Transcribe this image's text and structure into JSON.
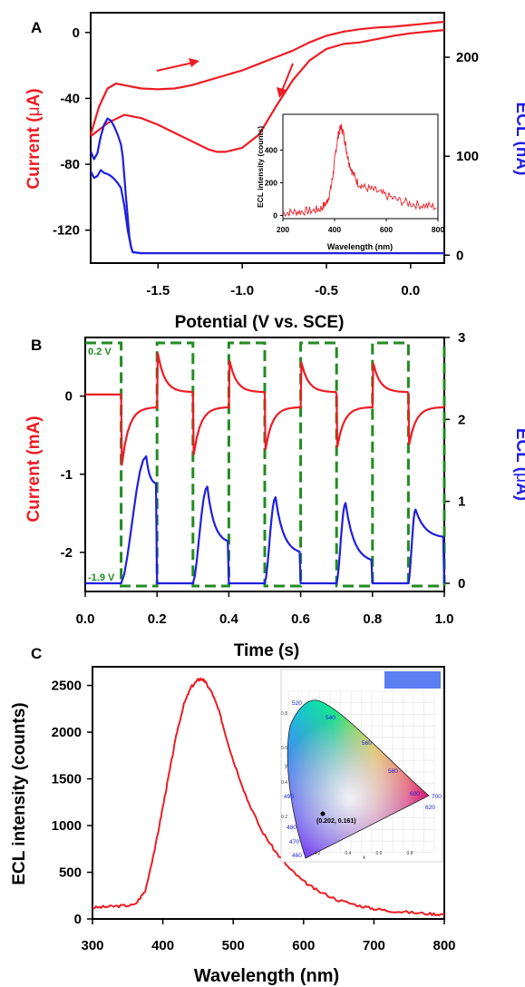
{
  "chart_data": [
    {
      "panel_label": "A",
      "type": "line",
      "xlabel": "Potential (V vs. SCE)",
      "ylabel_left_parts": [
        "Current (",
        "μ",
        "A)"
      ],
      "ylabel_right": "ECL (nA)",
      "xlim": [
        -1.9,
        0.2
      ],
      "ylim_left": [
        -140,
        12
      ],
      "ylim_right": [
        -8,
        245
      ],
      "x_ticks": [
        "-1.5",
        "-1.0",
        "-0.5",
        "0.0"
      ],
      "y_ticks_left": [
        "0",
        "-40",
        "-80",
        "-120"
      ],
      "y_ticks_right": [
        "0",
        "100",
        "200"
      ],
      "colors": {
        "current": "#ee1c24",
        "ecl": "#1f1fe0"
      },
      "series": [
        {
          "axis": "left",
          "color": "#ee1c24",
          "x": [
            -1.9,
            -1.85,
            -1.8,
            -1.75,
            -1.7,
            -1.6,
            -1.5,
            -1.4,
            -1.3,
            -1.2,
            -1.1,
            -1.0,
            -0.9,
            -0.8,
            -0.7,
            -0.6,
            -0.5,
            -0.4,
            -0.3,
            -0.2,
            -0.1,
            0.0,
            0.1,
            0.2
          ],
          "values": [
            -62,
            -45,
            -34,
            -31,
            -32,
            -34,
            -34.5,
            -34,
            -32,
            -29,
            -26,
            -23,
            -19,
            -15,
            -11,
            -6,
            -2,
            0.5,
            2,
            3,
            3.5,
            4.5,
            5.5,
            6.5
          ]
        },
        {
          "axis": "left",
          "color": "#ee1c24",
          "x": [
            0.2,
            0.1,
            0.0,
            -0.1,
            -0.2,
            -0.3,
            -0.4,
            -0.5,
            -0.6,
            -0.7,
            -0.8,
            -0.9,
            -1.0,
            -1.1,
            -1.15,
            -1.2,
            -1.3,
            -1.4,
            -1.5,
            -1.6,
            -1.7,
            -1.8,
            -1.9
          ],
          "values": [
            1.5,
            0.5,
            -0.5,
            -2,
            -4,
            -6,
            -7,
            -10,
            -17,
            -29,
            -45,
            -62,
            -70,
            -72.5,
            -72.5,
            -71,
            -66,
            -61,
            -56,
            -52,
            -50,
            -55,
            -63
          ]
        },
        {
          "axis": "right",
          "color": "#1f1fe0",
          "x": [
            -1.9,
            -1.88,
            -1.86,
            -1.84,
            -1.82,
            -1.8,
            -1.78,
            -1.76,
            -1.74,
            -1.72,
            -1.71,
            -1.7,
            -1.69,
            -1.68,
            -1.67,
            -1.66,
            -1.65,
            -1.6,
            -1.5,
            -1.0,
            -0.5,
            0.0,
            0.2
          ],
          "values": [
            105,
            97,
            103,
            120,
            132,
            138,
            136,
            130,
            122,
            112,
            100,
            80,
            58,
            38,
            18,
            8,
            3,
            2,
            2,
            2,
            2,
            2,
            2
          ]
        },
        {
          "axis": "right",
          "color": "#1f1fe0",
          "x": [
            -1.9,
            -1.88,
            -1.86,
            -1.84,
            -1.82,
            -1.8,
            -1.78,
            -1.76,
            -1.74,
            -1.72,
            -1.7,
            -1.68,
            -1.66,
            -1.65,
            -1.6
          ],
          "values": [
            85,
            78,
            80,
            86,
            83,
            82,
            80,
            77,
            73,
            68,
            50,
            25,
            8,
            3,
            2
          ]
        }
      ],
      "arrows": [
        "right",
        "down-left"
      ],
      "inset": {
        "type": "line",
        "xlabel": "Wavelength (nm)",
        "ylabel": "ECL intensity (counts)",
        "xlim": [
          200,
          800
        ],
        "ylim": [
          -20,
          620
        ],
        "x_ticks": [
          "200",
          "400",
          "600",
          "800"
        ],
        "y_ticks": [
          "0",
          "200",
          "400"
        ],
        "color": "#ee1c24",
        "x": [
          200,
          240,
          280,
          320,
          350,
          370,
          385,
          395,
          405,
          415,
          425,
          435,
          445,
          455,
          470,
          490,
          520,
          560,
          600,
          650,
          700,
          750,
          800
        ],
        "values": [
          15,
          20,
          25,
          30,
          45,
          80,
          160,
          260,
          400,
          500,
          545,
          500,
          410,
          330,
          260,
          200,
          170,
          150,
          120,
          90,
          70,
          60,
          50
        ]
      }
    },
    {
      "panel_label": "B",
      "type": "line",
      "xlabel": "Time (s)",
      "ylabel_left": "Current (mA)",
      "ylabel_right_parts": [
        "ECL (",
        "μ",
        "A)"
      ],
      "xlim": [
        0,
        1.0
      ],
      "ylim_left": [
        -2.5,
        0.75
      ],
      "ylim_right": [
        -0.1,
        3.0
      ],
      "x_ticks": [
        "0.0",
        "0.2",
        "0.4",
        "0.6",
        "0.8",
        "1.0"
      ],
      "y_ticks_left": [
        "0",
        "-1",
        "-2"
      ],
      "y_ticks_right": [
        "0",
        "1",
        "2",
        "3"
      ],
      "annotations": {
        "high": "0.2 V",
        "low": "-1.9 V"
      },
      "colors": {
        "current": "#ee1c24",
        "ecl": "#1f1fe0",
        "potential": "#228b22"
      },
      "step_times": [
        0.1,
        0.2,
        0.3,
        0.4,
        0.5,
        0.6,
        0.7,
        0.8,
        0.9,
        1.0
      ],
      "current_steps": [
        {
          "t": 0.1,
          "peak": -0.88
        },
        {
          "t": 0.2,
          "peak": 0.55
        },
        {
          "t": 0.3,
          "peak": -0.75
        },
        {
          "t": 0.4,
          "peak": 0.45
        },
        {
          "t": 0.5,
          "peak": -0.68
        },
        {
          "t": 0.6,
          "peak": 0.43
        },
        {
          "t": 0.7,
          "peak": -0.65
        },
        {
          "t": 0.8,
          "peak": 0.42
        },
        {
          "t": 0.9,
          "peak": -0.62
        }
      ],
      "ecl_pulses": [
        {
          "start": 0.1,
          "peak_t": 0.17,
          "peak": 1.55,
          "end_level": 1.2
        },
        {
          "start": 0.3,
          "peak_t": 0.34,
          "peak": 1.18,
          "end_level": 0.48
        },
        {
          "start": 0.5,
          "peak_t": 0.53,
          "peak": 1.05,
          "end_level": 0.35
        },
        {
          "start": 0.7,
          "peak_t": 0.725,
          "peak": 0.98,
          "end_level": 0.25
        },
        {
          "start": 0.9,
          "peak_t": 0.92,
          "peak": 0.9,
          "end_level": 0.55
        }
      ],
      "potential_levels": {
        "high": 0.2,
        "low": -1.9
      }
    },
    {
      "panel_label": "C",
      "type": "line",
      "xlabel": "Wavelength (nm)",
      "ylabel": "ECL intensity (counts)",
      "xlim": [
        300,
        800
      ],
      "ylim": [
        0,
        2700
      ],
      "x_ticks": [
        "300",
        "400",
        "500",
        "600",
        "700",
        "800"
      ],
      "y_ticks": [
        "0",
        "500",
        "1000",
        "1500",
        "2000",
        "2500"
      ],
      "color": "#ee1c24",
      "x": [
        300,
        320,
        340,
        360,
        375,
        390,
        400,
        410,
        420,
        430,
        440,
        450,
        455,
        460,
        470,
        480,
        490,
        500,
        520,
        540,
        560,
        580,
        600,
        620,
        650,
        680,
        700,
        720,
        750,
        780,
        800
      ],
      "values": [
        120,
        130,
        140,
        150,
        300,
        800,
        1200,
        1600,
        2000,
        2300,
        2480,
        2560,
        2570,
        2540,
        2420,
        2220,
        1950,
        1700,
        1280,
        950,
        720,
        540,
        400,
        300,
        200,
        140,
        110,
        90,
        70,
        55,
        50
      ],
      "inset": {
        "type": "CIE chromaticity diagram",
        "wavelength_labels": [
          "520",
          "540",
          "560",
          "580",
          "600",
          "620",
          "700",
          "490",
          "480",
          "470",
          "460"
        ],
        "point_label": "(0.202, 0.161)",
        "point": [
          0.202,
          0.161
        ],
        "axis_x_label": "x",
        "axis_y_label": "y",
        "x_ticks": [
          "0.2",
          "0.4",
          "0.6",
          "0.8"
        ],
        "y_ticks": [
          "0.2",
          "0.4",
          "0.6",
          "0.8"
        ],
        "swatch_color": "#5b7ff2"
      }
    }
  ]
}
